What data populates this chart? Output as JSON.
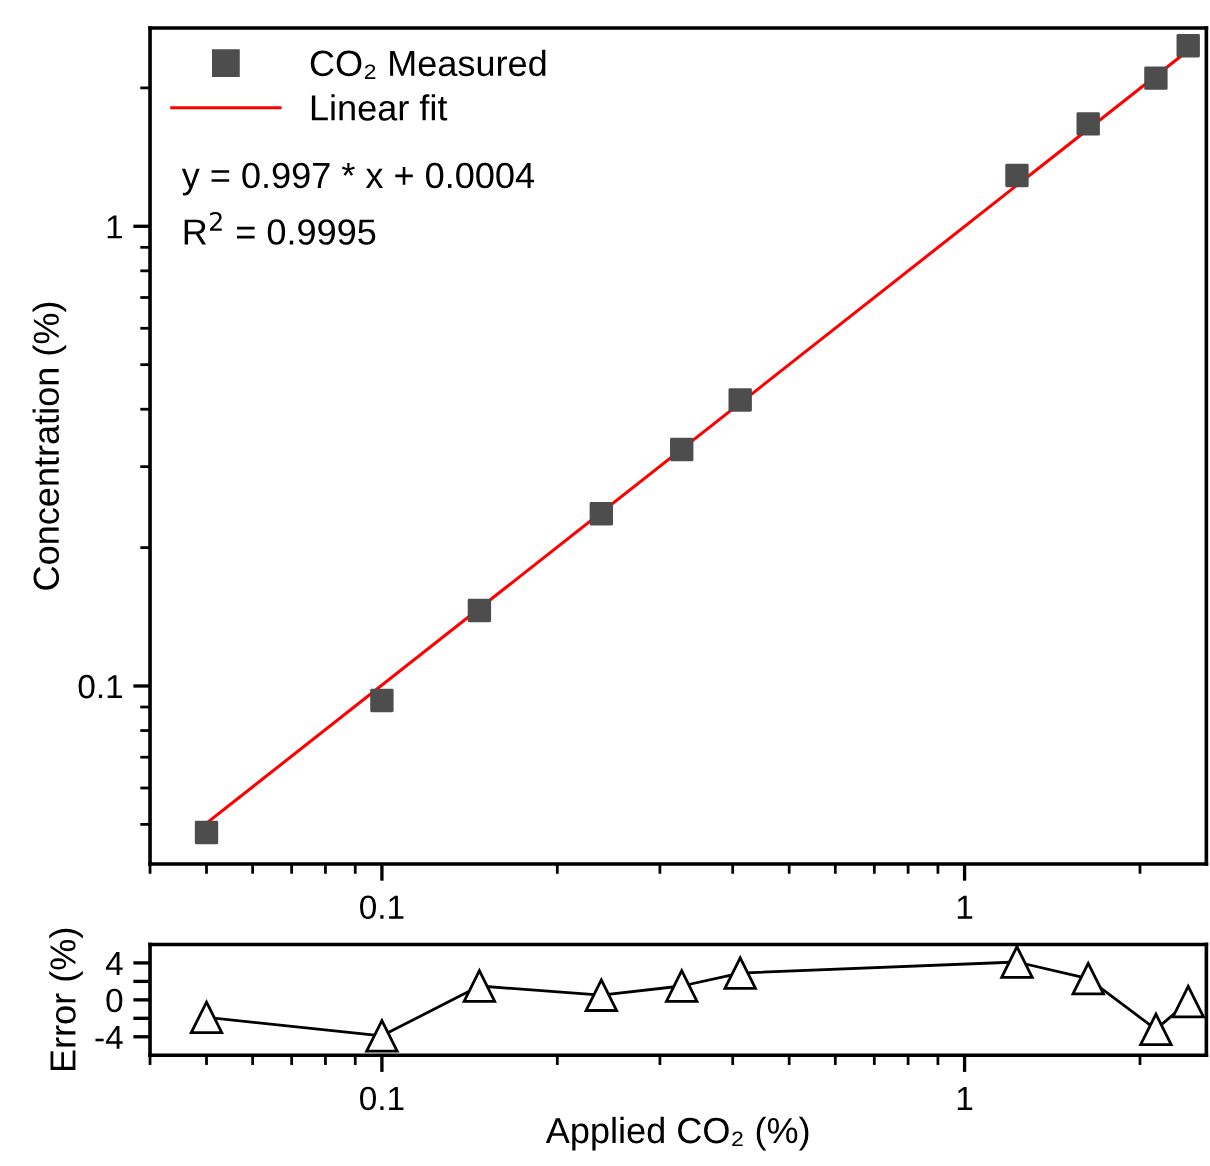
{
  "chart_data": [
    {
      "type": "scatter",
      "ylabel": "Concentration (%)",
      "log": "xy",
      "xlim": [
        0.04,
        2.6
      ],
      "ylim": [
        0.041,
        2.7
      ],
      "xticks": [
        0.1,
        1
      ],
      "yticks": [
        0.1,
        1
      ],
      "legend": "top left",
      "grid": false,
      "annotations": [
        "y = 0.997 * x + 0.0004",
        "R$^{2}$ = 0.9995"
      ],
      "series": [
        {
          "name": "CO₂ Measured",
          "marker": "square",
          "color": "#4d4d4d",
          "x": [
            0.05,
            0.1,
            0.147,
            0.238,
            0.327,
            0.412,
            1.23,
            1.63,
            2.13,
            2.42
          ],
          "values": [
            0.048,
            0.093,
            0.146,
            0.237,
            0.327,
            0.419,
            1.29,
            1.67,
            2.1,
            2.47
          ]
        },
        {
          "name": "Linear fit",
          "type": "line",
          "marker": "none",
          "line_style": "solid",
          "color": "#ff0000",
          "x": [
            0.05,
            2.42
          ],
          "values": [
            0.0503,
            2.413
          ]
        }
      ]
    },
    {
      "type": "line",
      "xlabel": "Applied CO₂ (%)",
      "ylabel": "Error (%)",
      "log": "x",
      "xlim": [
        0.04,
        2.6
      ],
      "ylim": [
        -6,
        6
      ],
      "xticks": [
        0.1,
        1
      ],
      "yticks": [
        -4,
        {
          "value": -2,
          "label": null
        },
        0,
        {
          "value": 2,
          "label": null
        },
        4
      ],
      "grid": false,
      "legend": false,
      "series": [
        {
          "marker": "triangle",
          "line_style": "solid",
          "color": "#000000",
          "x": [
            0.05,
            0.1,
            0.147,
            0.238,
            0.327,
            0.412,
            1.23,
            1.63,
            2.13,
            2.42
          ],
          "values": [
            -1.9,
            -3.9,
            1.5,
            0.5,
            1.5,
            2.9,
            4.1,
            2.3,
            -3.2,
            -0.2
          ]
        }
      ]
    }
  ]
}
